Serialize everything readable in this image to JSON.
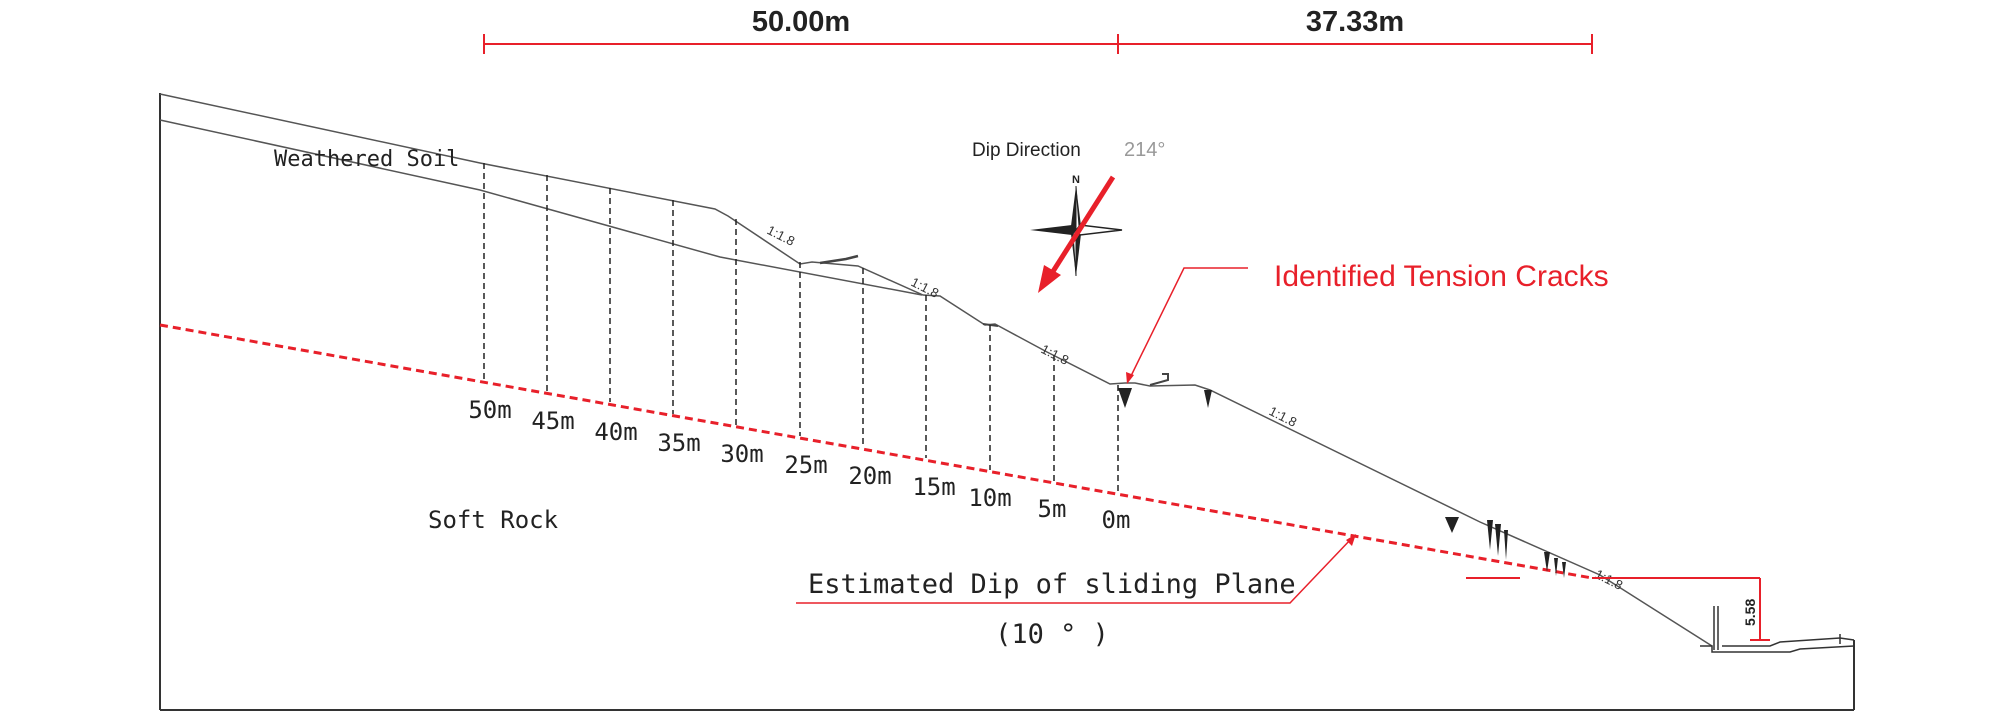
{
  "dimensions": {
    "left": "50.00m",
    "right": "37.33m",
    "height": "5.58"
  },
  "labels": {
    "weathered_soil": "Weathered Soil",
    "soft_rock": "Soft Rock",
    "dip_direction_label": "Dip Direction",
    "dip_direction_value": "214°",
    "north": "N",
    "tension_cracks": "Identified Tension Cracks",
    "sliding_plane": "Estimated Dip of sliding Plane",
    "sliding_angle": "(10 ° )"
  },
  "slope_ratios": [
    "1:1.8",
    "1:1.8",
    "1:1.8",
    "1:1.8",
    "1:1.8"
  ],
  "distance_markers": [
    "50m",
    "45m",
    "40m",
    "35m",
    "30m",
    "25m",
    "20m",
    "15m",
    "10m",
    "5m",
    "0m"
  ],
  "colors": {
    "red": "#e8202a",
    "line": "#555555"
  }
}
